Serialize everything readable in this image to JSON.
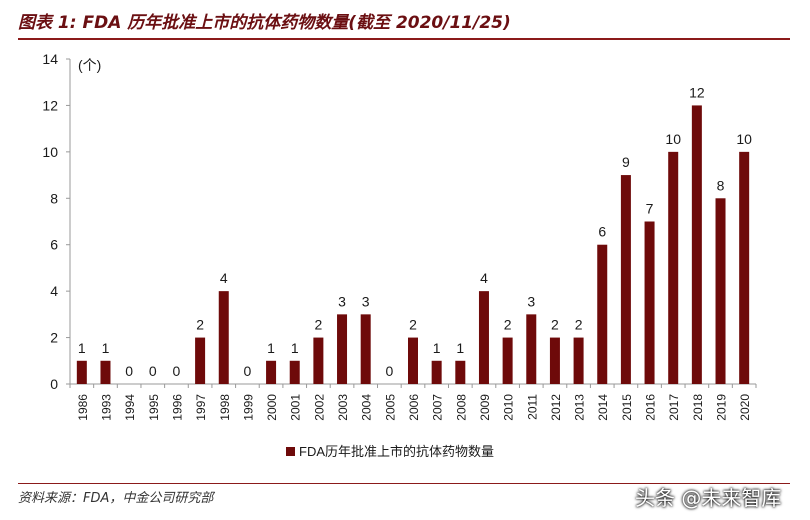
{
  "header": {
    "title": "图表 1: FDA 历年批准上市的抗体药物数量(截至 2020/11/25)"
  },
  "footer": {
    "source": "资料来源：FDA，中金公司研究部",
    "watermark": "头条 @未来智库"
  },
  "colors": {
    "bar": "#6e0a0a",
    "title": "#6b0f12",
    "rule": "#8b1a1a"
  },
  "chart_data": {
    "type": "bar",
    "title": "",
    "unit_label": "(个)",
    "categories": [
      "1986",
      "1993",
      "1994",
      "1995",
      "1996",
      "1997",
      "1998",
      "1999",
      "2000",
      "2001",
      "2002",
      "2003",
      "2004",
      "2005",
      "2006",
      "2007",
      "2008",
      "2009",
      "2010",
      "2011",
      "2012",
      "2013",
      "2014",
      "2015",
      "2016",
      "2017",
      "2018",
      "2019",
      "2020"
    ],
    "series": [
      {
        "name": "FDA历年批准上市的抗体药物数量",
        "values": [
          1,
          1,
          0,
          0,
          0,
          2,
          4,
          0,
          1,
          1,
          2,
          3,
          3,
          0,
          2,
          1,
          1,
          4,
          2,
          3,
          2,
          2,
          6,
          9,
          7,
          10,
          12,
          8,
          10
        ]
      }
    ],
    "ylim": [
      0,
      14
    ],
    "yticks": [
      0,
      2,
      4,
      6,
      8,
      10,
      12,
      14
    ],
    "grid": false,
    "legend_position": "bottom-center",
    "data_labels": true
  }
}
